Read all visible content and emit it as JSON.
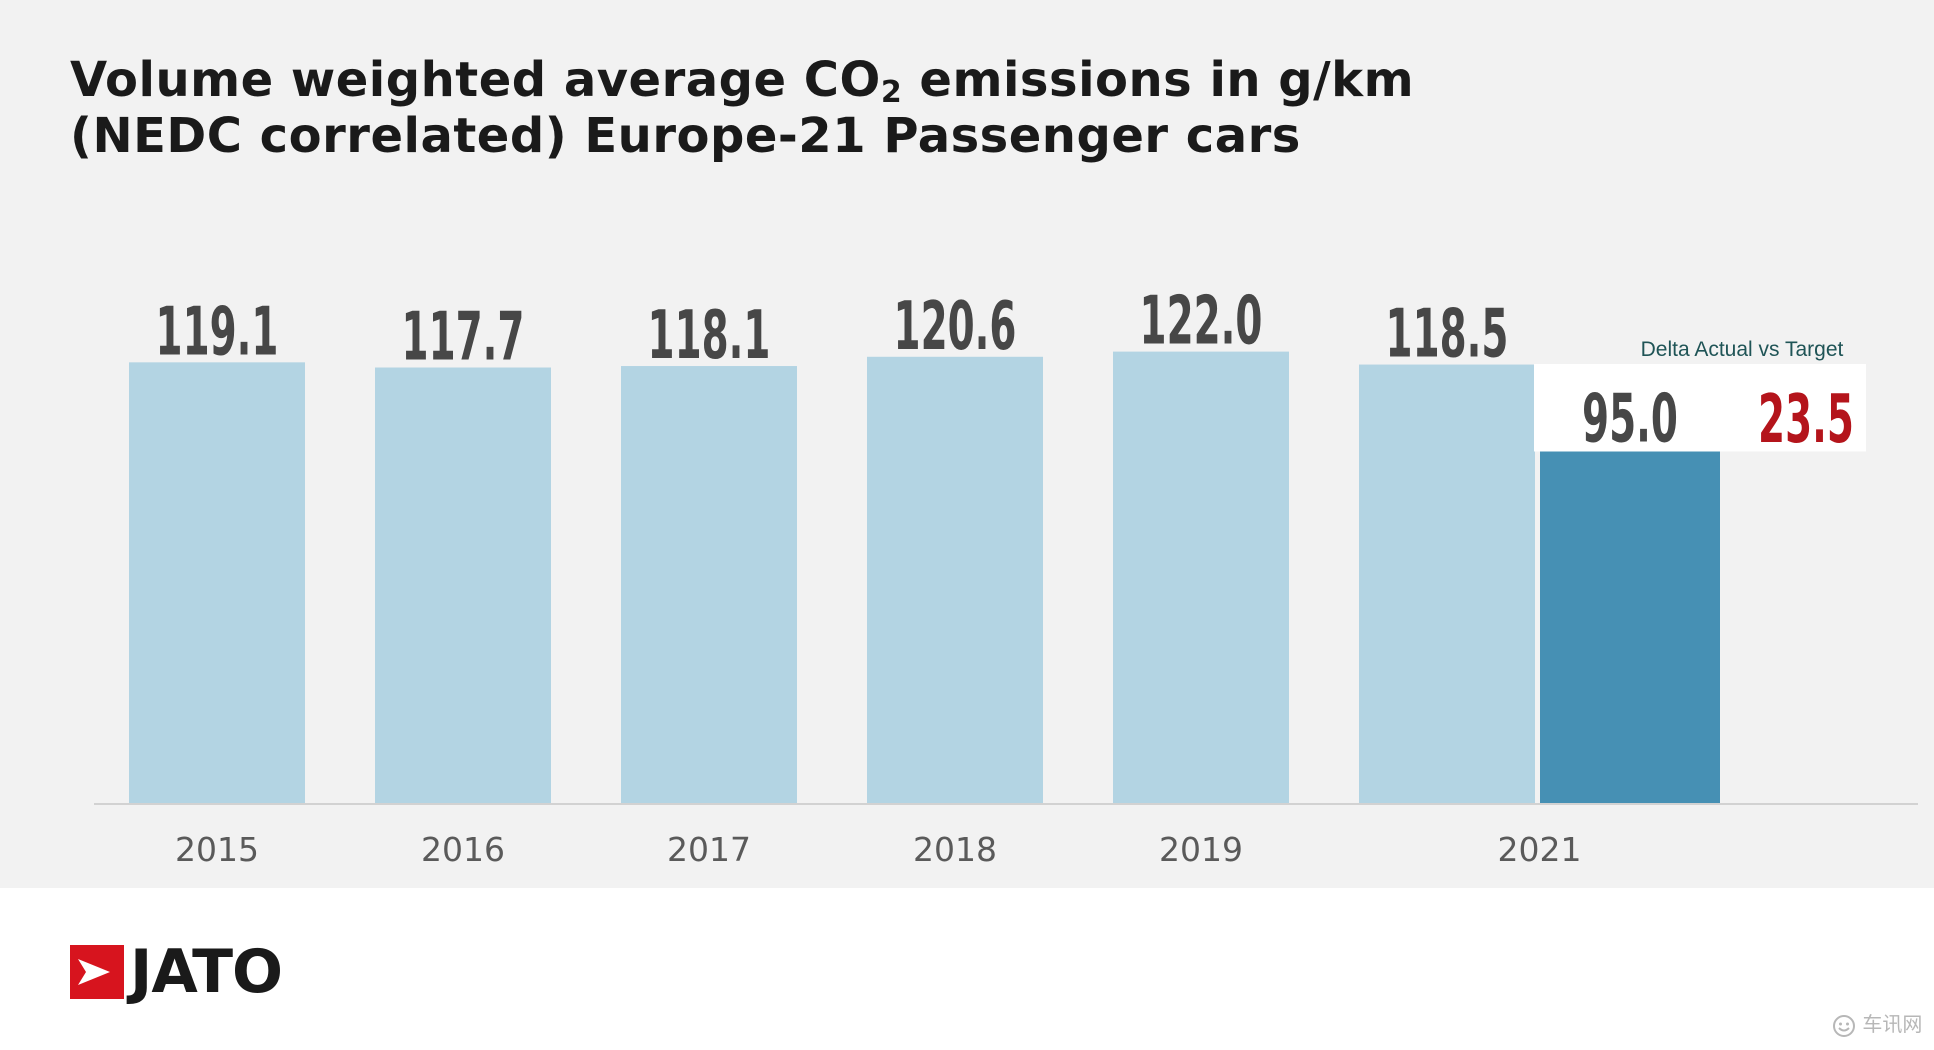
{
  "title": {
    "line1_pre": "Volume weighted average CO",
    "line1_sub": "2",
    "line1_post": " emissions in g/km",
    "line2": "(NEDC correlated) Europe-21 Passenger cars"
  },
  "chart_data": {
    "type": "bar",
    "title": "Volume weighted average CO2 emissions in g/km (NEDC correlated) Europe-21 Passenger cars",
    "categories": [
      "2015",
      "2016",
      "2017",
      "2018",
      "2019",
      "2021"
    ],
    "series": [
      {
        "values": [
          119.1,
          117.7,
          118.1,
          120.6,
          122.0,
          118.5
        ],
        "labels": [
          "119.1",
          "117.7",
          "118.1",
          "120.6",
          "122.0",
          "118.5"
        ]
      },
      {
        "values": [
          null,
          null,
          null,
          null,
          null,
          95.0
        ],
        "labels": [
          "",
          "",
          "",
          "",
          "",
          "95.0"
        ]
      }
    ],
    "ylim": [
      0,
      125
    ],
    "grid": false,
    "annotation": {
      "label": "Delta Actual vs Target",
      "value": "23.5"
    }
  },
  "colors": {
    "actual_bar": "#b3d4e3",
    "target_bar": "#4690b4",
    "value_text": "#474747",
    "delta_text": "#b4141b",
    "delta_label": "#1f5456",
    "axis_text": "#5a5a5a",
    "baseline": "#d2d2d2",
    "brand_red": "#d7141e"
  },
  "logo": {
    "text": "JATO"
  },
  "watermark": {
    "text": "车讯网",
    "icon": "smiley-icon"
  }
}
